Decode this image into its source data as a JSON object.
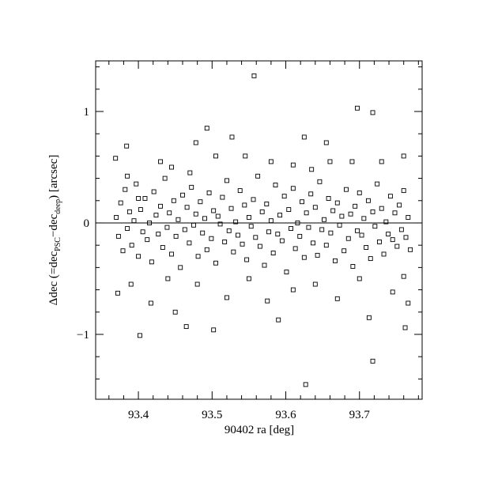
{
  "chart_data": {
    "type": "scatter",
    "x_label": "90402 ra [deg]",
    "y_label": [
      "Δdec  (=dec",
      "PSC",
      "−dec",
      "deep",
      ") [arcsec]"
    ],
    "xlim": [
      93.342,
      93.785
    ],
    "ylim": [
      -1.582,
      1.454
    ],
    "xticks": [
      93.4,
      93.5,
      93.6,
      93.7
    ],
    "yticks": [
      {
        "value": -1,
        "label": "−1"
      },
      0,
      1
    ],
    "minor_xticks": [
      93.36,
      93.38,
      93.42,
      93.44,
      93.46,
      93.48,
      93.52,
      93.54,
      93.56,
      93.58,
      93.62,
      93.64,
      93.66,
      93.68,
      93.72,
      93.74,
      93.76,
      93.78
    ],
    "minor_yticks": [
      -1.4,
      -1.2,
      -0.8,
      -0.6,
      -0.4,
      -0.2,
      0.2,
      0.4,
      0.6,
      0.8,
      1.2,
      1.4
    ],
    "zero_line": 0,
    "color": "#000000",
    "x": [
      93.37,
      93.373,
      93.376,
      93.379,
      93.382,
      93.385,
      93.388,
      93.391,
      93.394,
      93.397,
      93.4,
      93.403,
      93.406,
      93.409,
      93.412,
      93.415,
      93.418,
      93.421,
      93.424,
      93.427,
      93.43,
      93.433,
      93.436,
      93.439,
      93.442,
      93.445,
      93.448,
      93.451,
      93.454,
      93.457,
      93.46,
      93.463,
      93.466,
      93.469,
      93.472,
      93.475,
      93.478,
      93.481,
      93.484,
      93.487,
      93.49,
      93.493,
      93.496,
      93.499,
      93.502,
      93.505,
      93.508,
      93.511,
      93.514,
      93.517,
      93.52,
      93.523,
      93.526,
      93.529,
      93.532,
      93.535,
      93.538,
      93.541,
      93.544,
      93.547,
      93.55,
      93.553,
      93.556,
      93.559,
      93.562,
      93.565,
      93.568,
      93.571,
      93.574,
      93.577,
      93.58,
      93.583,
      93.586,
      93.589,
      93.592,
      93.595,
      93.598,
      93.601,
      93.604,
      93.607,
      93.61,
      93.613,
      93.616,
      93.619,
      93.622,
      93.625,
      93.628,
      93.631,
      93.634,
      93.637,
      93.64,
      93.643,
      93.646,
      93.649,
      93.652,
      93.655,
      93.658,
      93.661,
      93.664,
      93.667,
      93.67,
      93.673,
      93.676,
      93.679,
      93.682,
      93.685,
      93.688,
      93.691,
      93.694,
      93.697,
      93.7,
      93.703,
      93.706,
      93.709,
      93.712,
      93.715,
      93.718,
      93.721,
      93.724,
      93.727,
      93.73,
      93.733,
      93.736,
      93.739,
      93.742,
      93.745,
      93.748,
      93.751,
      93.754,
      93.757,
      93.76,
      93.763,
      93.766,
      93.769,
      93.557,
      93.697,
      93.718,
      93.493,
      93.384,
      93.402,
      93.502,
      93.627,
      93.718,
      93.713,
      93.762,
      93.369,
      93.372,
      93.766,
      93.478,
      93.527,
      93.625,
      93.655,
      93.59,
      93.465,
      93.45,
      93.417,
      93.52,
      93.385,
      93.4,
      93.43,
      93.445,
      93.47,
      93.505,
      93.545,
      93.58,
      93.61,
      93.635,
      93.66,
      93.69,
      93.73,
      93.76,
      93.39,
      93.44,
      93.48,
      93.55,
      93.575,
      93.61,
      93.64,
      93.67,
      93.7,
      93.745,
      93.76
    ],
    "values": [
      0.05,
      -0.12,
      0.18,
      -0.25,
      0.3,
      -0.05,
      0.1,
      -0.2,
      0.02,
      0.35,
      -0.3,
      0.12,
      -0.08,
      0.22,
      -0.15,
      0.0,
      -0.35,
      0.28,
      0.07,
      -0.1,
      0.15,
      -0.22,
      0.4,
      -0.04,
      0.09,
      -0.28,
      0.2,
      -0.12,
      0.03,
      -0.4,
      0.25,
      -0.06,
      0.14,
      -0.18,
      0.32,
      -0.02,
      0.08,
      -0.3,
      0.19,
      -0.09,
      0.04,
      -0.24,
      0.27,
      -0.14,
      0.11,
      -0.36,
      0.06,
      -0.01,
      0.23,
      -0.17,
      0.38,
      -0.07,
      0.13,
      -0.26,
      0.01,
      -0.11,
      0.29,
      -0.19,
      0.16,
      -0.33,
      0.05,
      -0.03,
      0.21,
      -0.13,
      0.42,
      -0.21,
      0.1,
      -0.38,
      0.17,
      -0.08,
      0.02,
      -0.27,
      0.34,
      -0.1,
      0.07,
      -0.16,
      0.24,
      -0.44,
      0.12,
      -0.05,
      0.31,
      -0.23,
      0.0,
      -0.12,
      0.19,
      -0.31,
      0.09,
      -0.04,
      0.26,
      -0.18,
      0.14,
      -0.29,
      0.37,
      -0.06,
      0.03,
      -0.2,
      0.22,
      -0.09,
      0.11,
      -0.34,
      0.18,
      -0.02,
      0.06,
      -0.25,
      0.3,
      -0.14,
      0.08,
      -0.39,
      0.15,
      -0.07,
      0.27,
      -0.11,
      0.04,
      -0.22,
      0.2,
      -0.32,
      0.1,
      -0.03,
      0.35,
      -0.17,
      0.13,
      -0.28,
      0.01,
      -0.1,
      0.24,
      -0.15,
      0.09,
      -0.21,
      0.16,
      -0.06,
      0.29,
      -0.13,
      0.05,
      -0.24,
      1.32,
      1.03,
      0.99,
      0.85,
      0.69,
      -1.01,
      -0.96,
      -1.45,
      -1.24,
      -0.85,
      -0.94,
      0.58,
      -0.63,
      -0.72,
      0.72,
      0.77,
      0.77,
      0.72,
      -0.87,
      -0.93,
      -0.8,
      -0.72,
      -0.67,
      0.42,
      0.22,
      0.55,
      0.5,
      0.45,
      0.6,
      0.6,
      0.55,
      0.52,
      0.48,
      0.55,
      0.55,
      0.55,
      0.6,
      -0.55,
      -0.5,
      -0.55,
      -0.5,
      -0.7,
      -0.6,
      -0.55,
      -0.68,
      -0.5,
      -0.62,
      -0.48
    ]
  }
}
